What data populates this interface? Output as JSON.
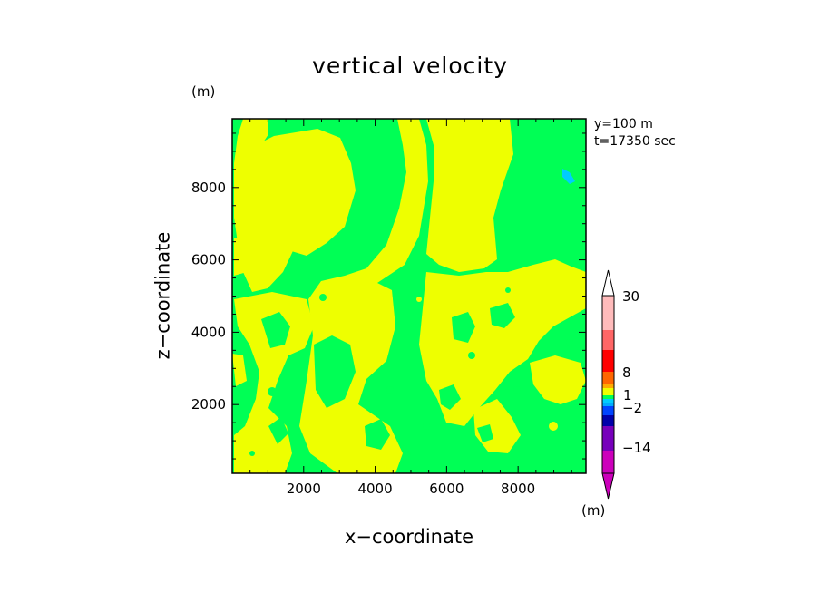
{
  "chart_data": {
    "type": "heatmap",
    "title": "vertical velocity",
    "xlabel": "x−coordinate",
    "ylabel": "z−coordinate",
    "axis_unit": "(m)",
    "annotations": [
      "y=100 m",
      "t=17350 sec"
    ],
    "xlim": [
      0,
      9900
    ],
    "ylim": [
      100,
      9900
    ],
    "xticks": [
      2000,
      4000,
      6000,
      8000
    ],
    "yticks": [
      2000,
      4000,
      6000,
      8000
    ],
    "grid": false,
    "colorbar": {
      "unit": "(m)",
      "tick_labels": [
        {
          "label": "30",
          "value": 30
        },
        {
          "label": "8",
          "value": 8
        },
        {
          "label": "1",
          "value": 1
        },
        {
          "label": "−2",
          "value": -2
        },
        {
          "label": "−14",
          "value": -14
        }
      ],
      "levels": [
        {
          "color": "#cc00bb"
        },
        {
          "color": "#7700bb"
        },
        {
          "color": "#0000aa"
        },
        {
          "color": "#0044ff"
        },
        {
          "color": "#00ccff"
        },
        {
          "color": "#00ff55"
        },
        {
          "color": "#eeff00"
        },
        {
          "color": "#ffaa00"
        },
        {
          "color": "#ff6600"
        },
        {
          "color": "#ff0000"
        },
        {
          "color": "#ff6666"
        },
        {
          "color": "#ffbbbb"
        }
      ]
    },
    "field_summary": {
      "dominant_colors": [
        "#00ff55",
        "#eeff00"
      ],
      "minor_colors": [
        "#00ccff"
      ]
    }
  }
}
